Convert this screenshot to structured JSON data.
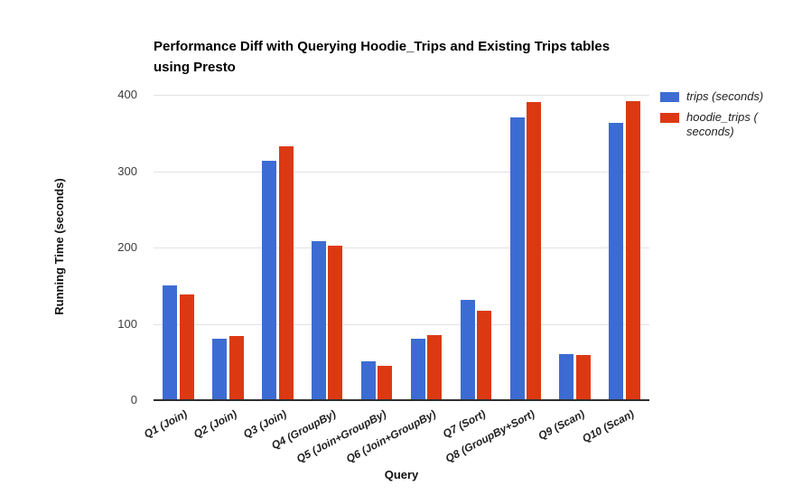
{
  "chart_data": {
    "type": "bar",
    "title": "Performance Diff with Querying Hoodie_Trips and Existing Trips tables using Presto",
    "title_lines": [
      "Performance Diff with Querying Hoodie_Trips and Existing Trips tables",
      "using Presto"
    ],
    "xlabel": "Query",
    "ylabel": "Running Time (seconds)",
    "ylim": [
      0,
      400
    ],
    "yticks": [
      0,
      100,
      200,
      300,
      400
    ],
    "grid": true,
    "legend_position": "right",
    "categories": [
      "Q1 (Join)",
      "Q2 (Join)",
      "Q3 (Join)",
      "Q4 (GroupBy)",
      "Q5 (Join+GroupBy)",
      "Q6 (Join+GroupBy)",
      "Q7 (Sort)",
      "Q8 (GroupBy+Sort)",
      "Q9 (Scan)",
      "Q10 (Scan)"
    ],
    "series": [
      {
        "name": "trips (seconds)",
        "color": "#3C6CD3",
        "values": [
          150,
          81,
          314,
          208,
          51,
          81,
          131,
          371,
          60,
          363
        ]
      },
      {
        "name": "hoodie_trips ( seconds)",
        "color": "#DC3912",
        "values": [
          138,
          84,
          333,
          202,
          45,
          85,
          117,
          390,
          59,
          392
        ]
      }
    ],
    "colors": {
      "background": "#ffffff",
      "gridline": "#e2e2e2",
      "axis_line": "#2e2e2e",
      "title_text": "#000000",
      "tick_text": "#3c3c3c"
    }
  }
}
